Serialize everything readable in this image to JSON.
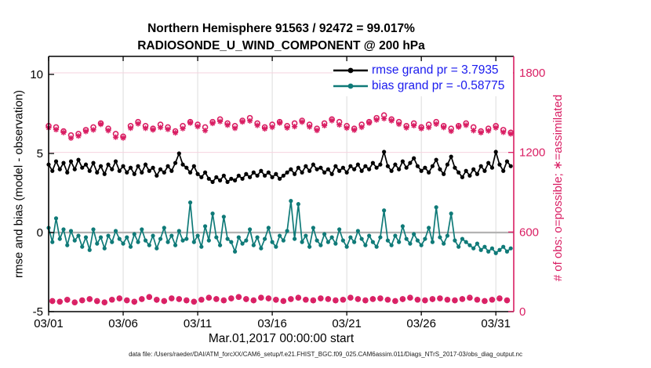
{
  "title": {
    "line1": "Northern Hemisphere 91563 / 92472 = 99.017%",
    "line2": "RADIOSONDE_U_WIND_COMPONENT @ 200 hPa"
  },
  "footer": {
    "data_file": "data file: /Users/raeder/DAI/ATM_forcXX/CAM6_setup/f.e21.FHIST_BGC.f09_025.CAM6assim.011/Diags_NTrS_2017-03/obs_diag_output.nc"
  },
  "legend": {
    "items": [
      {
        "label": "rmse grand pr = 3.7935",
        "color": "#000000"
      },
      {
        "label": "bias grand pr = -0.58775",
        "color": "#0f7a78"
      }
    ],
    "text_color": "#1a1aee"
  },
  "colors": {
    "counts_pink": "#d91e63",
    "counts_grid_pink": "#f6d3df",
    "bias_teal": "#0f7a78",
    "rmse_black": "#000000",
    "grid_gray": "#dcdcdc",
    "zero_line_gray": "#b3b3b3"
  },
  "chart_data": {
    "type": "line",
    "title": "Northern Hemisphere 91563 / 92472 = 99.017%",
    "subtitle": "RADIOSONDE_U_WIND_COMPONENT @ 200 hPa",
    "xlabel": "Mar.01,2017 00:00:00 start",
    "ylabel_left": "rmse and bias (model - observation)",
    "ylabel_right": "# of obs: o=possible; ∗=assimilated",
    "x_unit": "days since 2017-03-01 00:00 UTC, 6-hourly bins",
    "x_bin_days": 0.25,
    "xlim_days": [
      0,
      31.2
    ],
    "xticks": {
      "days": [
        0,
        5,
        10,
        15,
        20,
        25,
        30
      ],
      "labels": [
        "03/01",
        "03/06",
        "03/11",
        "03/16",
        "03/21",
        "03/26",
        "03/31"
      ]
    },
    "ylim_left": [
      -5,
      11.14
    ],
    "yticks_left": {
      "values": [
        10,
        5,
        0,
        -5
      ],
      "labels": [
        "10",
        "5",
        "0",
        "-5"
      ]
    },
    "ylim_right": [
      0,
      1924
    ],
    "yticks_right": {
      "values": [
        1800,
        1200,
        600,
        0
      ],
      "labels": [
        "1800",
        "1200",
        "600",
        "0"
      ]
    },
    "grid": true,
    "legend_position": "top-right inside",
    "series": [
      {
        "name": "rmse",
        "legend": "rmse grand pr = 3.7935",
        "grand_value": 3.7935,
        "color": "#000000",
        "values": [
          4.3,
          3.9,
          4.5,
          4.0,
          4.4,
          3.8,
          4.5,
          4.0,
          4.6,
          4.1,
          4.3,
          3.9,
          4.4,
          3.8,
          4.2,
          3.7,
          4.3,
          4.0,
          4.5,
          3.9,
          4.2,
          3.8,
          4.1,
          3.7,
          4.2,
          3.8,
          4.3,
          3.9,
          4.1,
          3.6,
          4.0,
          3.8,
          4.2,
          3.9,
          4.4,
          5.0,
          4.3,
          4.1,
          3.8,
          4.2,
          3.7,
          3.5,
          3.8,
          3.4,
          3.2,
          3.5,
          3.3,
          3.6,
          3.2,
          3.4,
          3.3,
          3.6,
          3.4,
          3.7,
          3.5,
          3.8,
          3.6,
          3.9,
          3.6,
          3.8,
          3.5,
          3.7,
          3.4,
          3.6,
          3.8,
          4.0,
          3.7,
          4.1,
          3.8,
          4.2,
          3.9,
          4.3,
          4.0,
          4.1,
          3.8,
          4.0,
          3.7,
          4.2,
          3.9,
          4.1,
          3.8,
          4.2,
          4.0,
          4.3,
          3.9,
          4.2,
          4.0,
          4.4,
          4.1,
          4.3,
          5.1,
          4.2,
          3.9,
          4.3,
          4.0,
          4.5,
          4.1,
          4.4,
          4.7,
          4.2,
          3.9,
          4.1,
          3.8,
          4.2,
          4.6,
          4.0,
          3.7,
          4.3,
          4.8,
          4.1,
          3.8,
          3.5,
          3.9,
          3.6,
          4.0,
          3.7,
          4.2,
          3.9,
          4.4,
          4.1,
          5.1,
          4.3,
          3.9,
          4.5,
          4.2
        ]
      },
      {
        "name": "bias",
        "legend": "bias grand pr = -0.58775",
        "grand_value": -0.58775,
        "color": "#0f7a78",
        "values": [
          0.3,
          -0.6,
          0.9,
          -0.4,
          0.2,
          -0.8,
          0.1,
          -0.5,
          -0.2,
          -0.9,
          -0.3,
          -1.1,
          0.2,
          -0.7,
          -0.3,
          -1.0,
          -0.2,
          -0.6,
          0.1,
          -0.4,
          -0.7,
          -0.3,
          -0.9,
          -0.1,
          -0.6,
          0.2,
          -0.5,
          -0.8,
          -0.2,
          -1.0,
          -0.4,
          0.3,
          -0.6,
          -0.2,
          -0.8,
          0.1,
          -0.5,
          -0.4,
          1.9,
          -0.6,
          -0.2,
          -0.9,
          0.4,
          -0.5,
          1.2,
          -0.3,
          -0.8,
          1.0,
          -0.4,
          -0.6,
          -1.2,
          -0.3,
          -0.7,
          -0.5,
          0.2,
          -0.8,
          -0.3,
          -1.0,
          -0.4,
          0.3,
          -0.6,
          -0.9,
          -0.2,
          -0.5,
          0.1,
          2.0,
          -0.4,
          1.8,
          -0.6,
          -0.2,
          -0.9,
          0.3,
          -0.5,
          -0.8,
          -0.1,
          -0.6,
          -0.3,
          -0.7,
          0.2,
          -0.5,
          -0.9,
          -0.3,
          -0.6,
          0.1,
          -0.4,
          -0.8,
          -0.2,
          -0.6,
          -0.9,
          -0.3,
          1.4,
          -0.5,
          -0.8,
          -0.2,
          -0.6,
          0.4,
          -0.4,
          -0.7,
          -0.1,
          -0.5,
          -0.8,
          -0.4,
          0.3,
          -0.6,
          1.6,
          -0.3,
          -0.7,
          -0.2,
          1.2,
          -0.5,
          -0.9,
          -0.4,
          -0.6,
          -0.8,
          -1.0,
          -0.7,
          -1.1,
          -0.9,
          -1.2,
          -1.0,
          -1.3,
          -1.1,
          -0.9,
          -1.2,
          -1.0
        ]
      }
    ],
    "obs_counts": {
      "color": "#d91e63",
      "possible_marker": "o",
      "assimilated_marker": "*",
      "possible": [
        1400,
        80,
        1390,
        75,
        1360,
        90,
        1330,
        70,
        1340,
        85,
        1370,
        95,
        1390,
        80,
        1420,
        70,
        1380,
        90,
        1340,
        100,
        1320,
        85,
        1400,
        75,
        1430,
        95,
        1400,
        110,
        1380,
        90,
        1410,
        80,
        1390,
        100,
        1360,
        95,
        1400,
        85,
        1430,
        75,
        1410,
        90,
        1390,
        105,
        1430,
        95,
        1450,
        85,
        1420,
        100,
        1400,
        110,
        1440,
        95,
        1460,
        85,
        1420,
        105,
        1390,
        100,
        1410,
        90,
        1430,
        80,
        1400,
        95,
        1420,
        105,
        1440,
        90,
        1410,
        85,
        1380,
        100,
        1420,
        95,
        1450,
        85,
        1430,
        90,
        1400,
        105,
        1380,
        95,
        1410,
        85,
        1430,
        95,
        1460,
        100,
        1480,
        90,
        1450,
        80,
        1430,
        95,
        1400,
        105,
        1420,
        90,
        1390,
        85,
        1410,
        95,
        1430,
        100,
        1400,
        90,
        1380,
        85,
        1400,
        95,
        1420,
        105,
        1390,
        90,
        1360,
        80,
        1380,
        90,
        1400,
        100,
        1370,
        85,
        1350
      ],
      "assimilated": [
        1386,
        79,
        1372,
        75,
        1350,
        88,
        1308,
        69,
        1324,
        85,
        1358,
        94,
        1370,
        78,
        1412,
        70,
        1365,
        89,
        1315,
        99,
        1309,
        85,
        1383,
        73,
        1416,
        94,
        1382,
        110,
        1370,
        88,
        1388,
        79,
        1374,
        100,
        1348,
        94,
        1380,
        83,
        1422,
        75,
        1395,
        89,
        1365,
        104,
        1419,
        95,
        1433,
        83,
        1406,
        99,
        1382,
        110,
        1430,
        93,
        1438,
        84,
        1404,
        105,
        1378,
        99,
        1390,
        88,
        1422,
        80,
        1385,
        94,
        1395,
        104,
        1429,
        90,
        1393,
        83,
        1366,
        99,
        1402,
        95,
        1440,
        83,
        1408,
        89,
        1384,
        105,
        1368,
        94,
        1390,
        83,
        1422,
        95,
        1445,
        99,
        1455,
        89,
        1439,
        80,
        1413,
        93,
        1386,
        104,
        1402,
        90,
        1380,
        84,
        1388,
        93,
        1414,
        100,
        1388,
        89,
        1360,
        84,
        1392,
        95,
        1405,
        103,
        1365,
        89,
        1349,
        80,
        1363,
        89,
        1386,
        98,
        1352,
        85,
        1340
      ]
    }
  }
}
